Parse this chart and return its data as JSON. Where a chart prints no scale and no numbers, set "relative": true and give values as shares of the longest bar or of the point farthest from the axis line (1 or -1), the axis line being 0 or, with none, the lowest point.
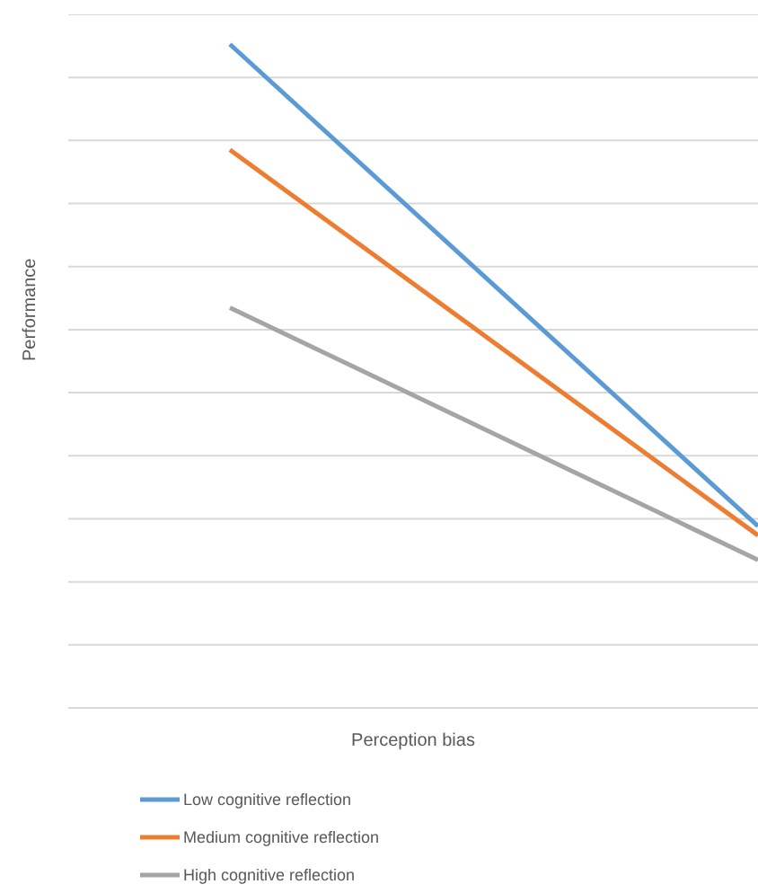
{
  "chart_data": {
    "type": "line",
    "relative": true,
    "xlabel": "Perception bias",
    "ylabel": "Performance",
    "categories": [
      null,
      null
    ],
    "series": [
      {
        "name": "Low cognitive reflection",
        "color": "#5b9bd5",
        "values": [
          1,
          0.274
        ]
      },
      {
        "name": "Medium cognitive reflection",
        "color": "#ed7d31",
        "values": [
          0.841,
          0.26
        ]
      },
      {
        "name": "High cognitive reflection",
        "color": "#a5a5a5",
        "values": [
          0.603,
          0.223
        ]
      }
    ],
    "grid": "y",
    "legend": "bottom",
    "marker": "none",
    "line_style": "solid"
  }
}
